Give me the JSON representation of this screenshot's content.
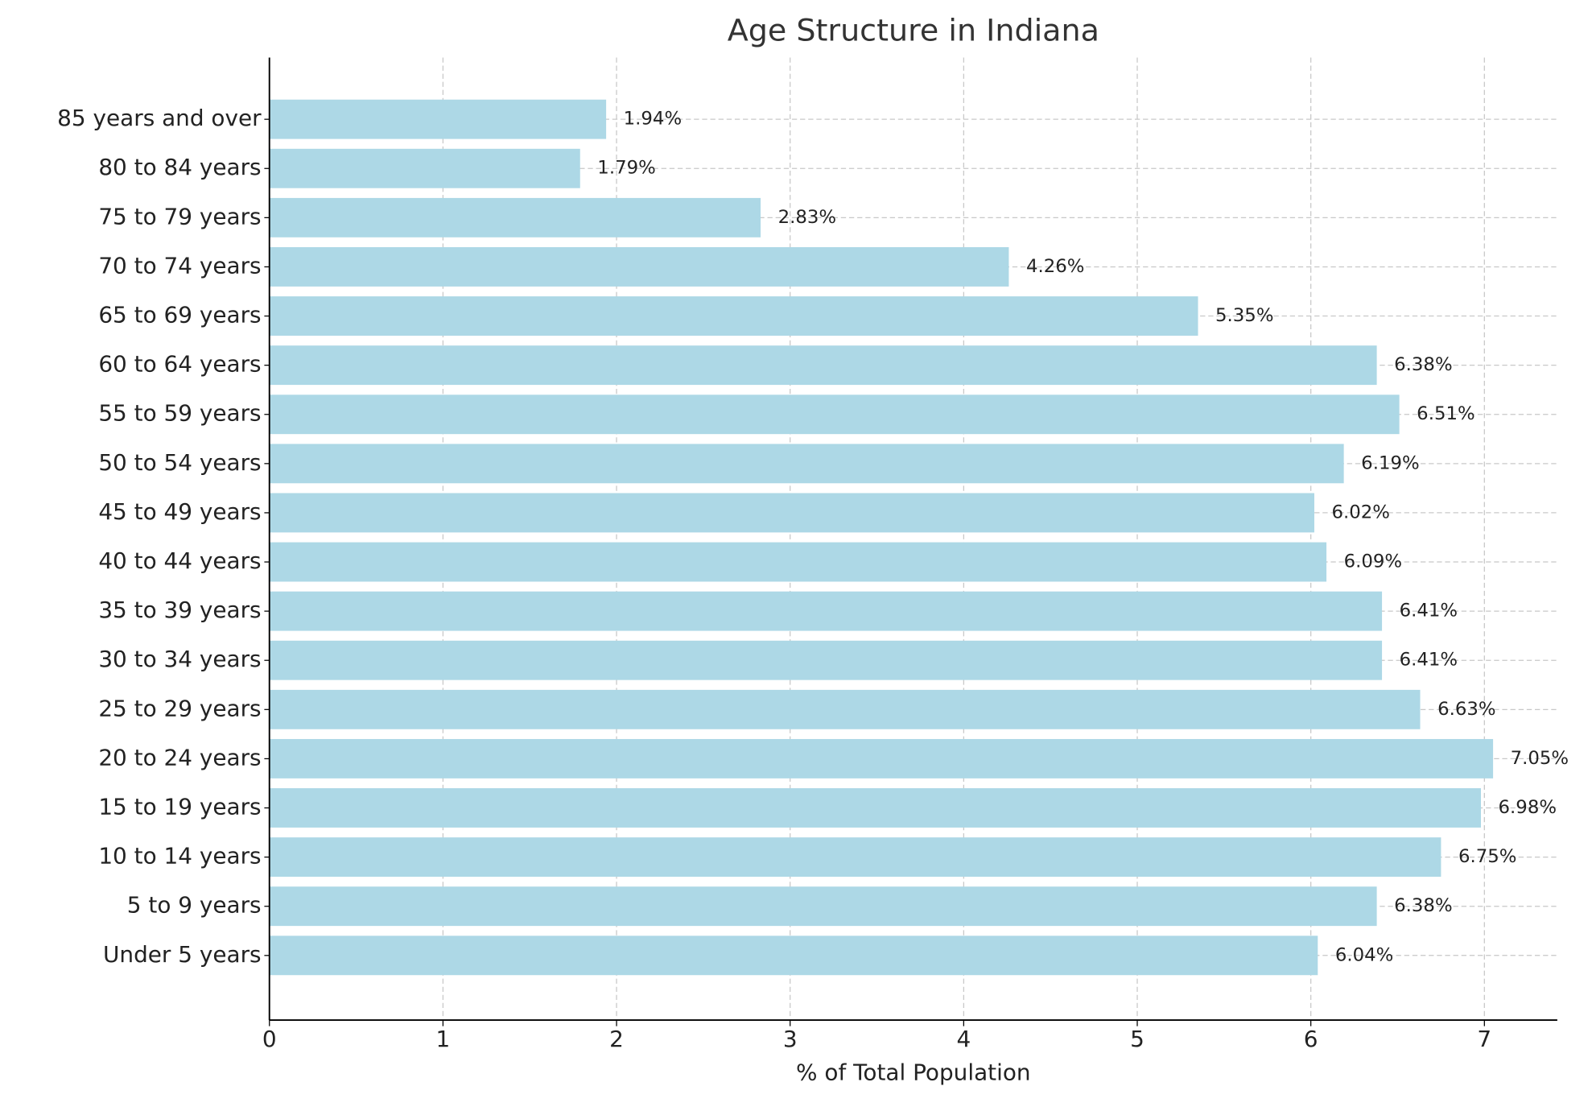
{
  "chart_data": {
    "type": "barh",
    "title": "Age Structure in Indiana",
    "x_label": "% of Total Population",
    "categories": [
      "Under 5 years",
      "5 to 9 years",
      "10 to 14 years",
      "15 to 19 years",
      "20 to 24 years",
      "25 to 29 years",
      "30 to 34 years",
      "35 to 39 years",
      "40 to 44 years",
      "45 to 49 years",
      "50 to 54 years",
      "55 to 59 years",
      "60 to 64 years",
      "65 to 69 years",
      "70 to 74 years",
      "75 to 79 years",
      "80 to 84 years",
      "85 years and over"
    ],
    "values": [
      6.04,
      6.38,
      6.75,
      6.98,
      7.05,
      6.63,
      6.41,
      6.41,
      6.09,
      6.02,
      6.19,
      6.51,
      6.38,
      5.35,
      4.26,
      2.83,
      1.79,
      1.94
    ],
    "value_labels": [
      "6.04%",
      "6.38%",
      "6.75%",
      "6.98%",
      "7.05%",
      "6.63%",
      "6.41%",
      "6.41%",
      "6.09%",
      "6.02%",
      "6.19%",
      "6.51%",
      "6.38%",
      "5.35%",
      "4.26%",
      "2.83%",
      "1.79%",
      "1.94%"
    ],
    "color": "#add8e6",
    "xlim": [
      0,
      7.42
    ],
    "xticks": [
      0,
      1,
      2,
      3,
      4,
      5,
      6,
      7
    ],
    "grid": true
  }
}
